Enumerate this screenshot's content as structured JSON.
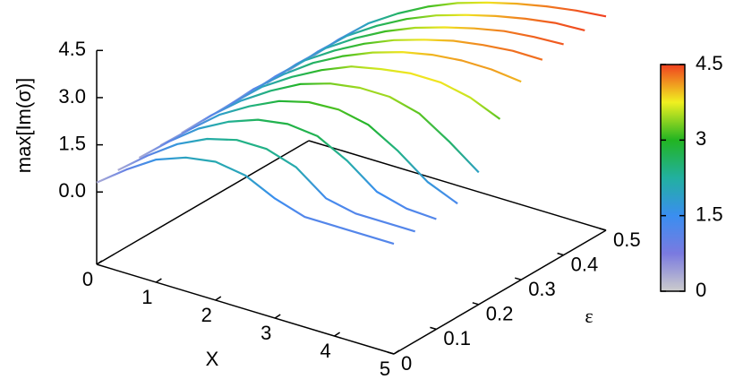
{
  "chart_data": {
    "type": "surface3d",
    "zlabel": "max[Im(σ)]",
    "xlabel": "X",
    "ylabel": "ε",
    "x": [
      0,
      0.5,
      1,
      1.5,
      2,
      2.5,
      3,
      3.5,
      4,
      4.5,
      5
    ],
    "y": [
      0,
      0.05,
      0.1,
      0.15,
      0.2,
      0.25,
      0.3,
      0.35,
      0.4,
      0.45,
      0.5
    ],
    "z": [
      [
        0.3,
        1.0,
        1.6,
        1.95,
        2.1,
        1.95,
        1.5,
        1.2,
        1.2,
        1.2,
        1.2
      ],
      [
        0.3,
        1.05,
        1.7,
        2.15,
        2.4,
        2.4,
        2.1,
        1.4,
        1.2,
        1.2,
        1.2
      ],
      [
        0.3,
        1.1,
        1.8,
        2.3,
        2.65,
        2.8,
        2.7,
        2.2,
        1.5,
        1.25,
        1.2
      ],
      [
        0.3,
        1.1,
        1.85,
        2.4,
        2.85,
        3.1,
        3.15,
        2.95,
        2.4,
        1.7,
        1.3
      ],
      [
        0.3,
        1.15,
        1.9,
        2.5,
        3.0,
        3.3,
        3.45,
        3.45,
        3.2,
        2.6,
        1.9
      ],
      [
        0.3,
        1.15,
        1.95,
        2.55,
        3.05,
        3.45,
        3.65,
        3.8,
        3.8,
        3.6,
        3.2
      ],
      [
        0.3,
        1.2,
        1.95,
        2.6,
        3.1,
        3.5,
        3.8,
        4.0,
        4.1,
        4.1,
        4.0
      ],
      [
        0.3,
        1.2,
        2.0,
        2.6,
        3.1,
        3.5,
        3.8,
        4.05,
        4.2,
        4.3,
        4.3
      ],
      [
        0.3,
        1.2,
        2.0,
        2.6,
        3.1,
        3.5,
        3.8,
        4.05,
        4.25,
        4.35,
        4.4
      ],
      [
        0.3,
        1.2,
        2.0,
        2.6,
        3.1,
        3.5,
        3.8,
        4.05,
        4.25,
        4.4,
        4.45
      ],
      [
        0.3,
        1.2,
        2.0,
        2.6,
        3.1,
        3.5,
        3.8,
        4.05,
        4.25,
        4.4,
        4.5
      ]
    ],
    "xlim": [
      0,
      5
    ],
    "ylim": [
      0,
      0.5
    ],
    "zlim": [
      -2.3,
      4.5
    ],
    "xticks": [
      0,
      1,
      2,
      3,
      4,
      5
    ],
    "yticks": [
      0,
      0.1,
      0.2,
      0.3,
      0.4,
      0.5
    ],
    "zticks": [
      {
        "value": 0,
        "label": "0.0"
      },
      {
        "value": 1.5,
        "label": "1.5"
      },
      {
        "value": 3,
        "label": "3.0"
      },
      {
        "value": 4.5,
        "label": "4.5"
      }
    ],
    "clim": [
      0,
      4.5
    ],
    "cticks": [
      0,
      1.5,
      3,
      4.5
    ],
    "palette": [
      "#cccccc",
      "#7a7ae0",
      "#3a8ef0",
      "#22b0a0",
      "#22b422",
      "#f0f020",
      "#f04020"
    ]
  }
}
